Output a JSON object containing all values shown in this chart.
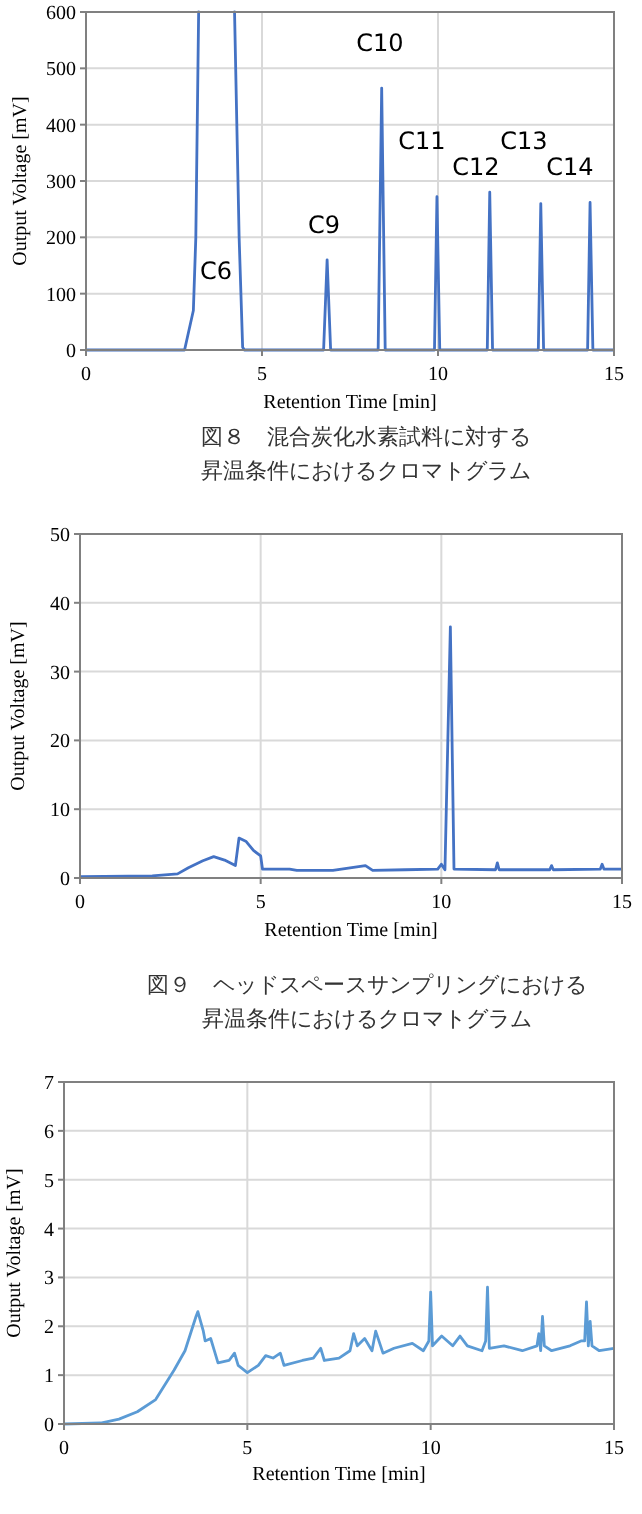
{
  "chart_data": [
    {
      "type": "line",
      "title": "図８　混合炭化水素試料に対する昇温条件におけるクロマトグラム",
      "xlabel": "Retention Time [min]",
      "ylabel": "Output Voltage [mV]",
      "xlim": [
        0,
        15
      ],
      "ylim": [
        0,
        600
      ],
      "xticks": [
        0,
        5,
        10,
        15
      ],
      "yticks": [
        0,
        100,
        200,
        300,
        400,
        500,
        600
      ],
      "grid": true,
      "marker": "none",
      "line_style": "solid",
      "series": [
        {
          "color": "#4472c4",
          "x": [
            0,
            2.8,
            3.05,
            3.12,
            3.2,
            3.7,
            4.22,
            4.35,
            4.45,
            4.5,
            6.75,
            6.85,
            6.95,
            8.3,
            8.4,
            8.5,
            9.9,
            9.97,
            10.05,
            11.4,
            11.47,
            11.55,
            12.85,
            12.92,
            13.0,
            14.25,
            14.32,
            14.4,
            15
          ],
          "values": [
            0,
            0,
            70,
            200,
            600,
            null,
            600,
            200,
            5,
            0,
            0,
            160,
            0,
            0,
            465,
            0,
            0,
            272,
            0,
            0,
            280,
            0,
            0,
            260,
            0,
            0,
            262,
            0,
            0
          ]
        }
      ],
      "annotations": [
        "C6",
        "C9",
        "C10",
        "C11",
        "C12",
        "C13",
        "C14"
      ]
    },
    {
      "type": "line",
      "title": "図９　ヘッドスペースサンプリングにおける昇温条件におけるクロマトグラム",
      "xlabel": "Retention Time [min]",
      "ylabel": "Output Voltage [mV]",
      "xlim": [
        0,
        15
      ],
      "ylim": [
        0,
        50
      ],
      "xticks": [
        0,
        5,
        10,
        15
      ],
      "yticks": [
        0,
        10,
        20,
        30,
        40,
        50
      ],
      "grid": true,
      "marker": "none",
      "line_style": "solid",
      "series": [
        {
          "color": "#4472c4",
          "x": [
            0,
            2,
            2.7,
            3.0,
            3.4,
            3.7,
            4.0,
            4.3,
            4.4,
            4.6,
            4.8,
            5.0,
            5.05,
            5.8,
            6,
            7,
            7.9,
            8.1,
            9,
            9.9,
            10.0,
            10.1,
            10.25,
            10.35,
            11.5,
            11.55,
            11.6,
            13.0,
            13.05,
            13.1,
            14.4,
            14.45,
            14.5,
            15
          ],
          "values": [
            0.2,
            0.3,
            0.6,
            1.5,
            2.5,
            3.1,
            2.6,
            1.8,
            5.8,
            5.3,
            4.0,
            3.2,
            1.3,
            1.3,
            1.1,
            1.1,
            1.8,
            1.1,
            1.2,
            1.3,
            2.0,
            1.2,
            36.5,
            1.3,
            1.2,
            2.2,
            1.2,
            1.2,
            1.8,
            1.2,
            1.3,
            2.0,
            1.3,
            1.3
          ]
        }
      ]
    },
    {
      "type": "line",
      "xlabel": "Retention Time [min]",
      "ylabel": "Output Voltage [mV]",
      "xlim": [
        0,
        15
      ],
      "ylim": [
        0,
        7
      ],
      "xticks": [
        0,
        5,
        10,
        15
      ],
      "yticks": [
        0,
        1,
        2,
        3,
        4,
        5,
        6,
        7
      ],
      "grid": true,
      "marker": "none",
      "line_style": "solid",
      "series": [
        {
          "color": "#5b9bd5",
          "x": [
            0,
            1,
            1.5,
            2,
            2.5,
            3,
            3.3,
            3.6,
            3.65,
            3.8,
            3.85,
            4.0,
            4.1,
            4.2,
            4.5,
            4.65,
            4.75,
            5,
            5.3,
            5.5,
            5.7,
            5.9,
            6.0,
            6.5,
            6.8,
            7,
            7.1,
            7.5,
            7.8,
            7.9,
            8.0,
            8.2,
            8.4,
            8.5,
            8.7,
            9.0,
            9.5,
            9.8,
            9.95,
            10.0,
            10.05,
            10.3,
            10.6,
            10.8,
            11.0,
            11.4,
            11.5,
            11.55,
            11.6,
            12,
            12.5,
            12.9,
            12.95,
            13.0,
            13.05,
            13.1,
            13.3,
            13.8,
            14.1,
            14.2,
            14.25,
            14.3,
            14.35,
            14.4,
            14.6,
            15
          ],
          "values": [
            0,
            0.02,
            0.1,
            0.25,
            0.5,
            1.1,
            1.5,
            2.2,
            2.3,
            1.9,
            1.7,
            1.75,
            1.5,
            1.25,
            1.3,
            1.45,
            1.2,
            1.05,
            1.2,
            1.4,
            1.35,
            1.45,
            1.2,
            1.3,
            1.35,
            1.55,
            1.3,
            1.35,
            1.5,
            1.85,
            1.6,
            1.75,
            1.5,
            1.9,
            1.45,
            1.55,
            1.65,
            1.5,
            1.7,
            2.7,
            1.6,
            1.8,
            1.6,
            1.8,
            1.6,
            1.5,
            1.7,
            2.8,
            1.55,
            1.6,
            1.5,
            1.6,
            1.85,
            1.5,
            2.2,
            1.6,
            1.5,
            1.6,
            1.7,
            1.7,
            2.5,
            1.6,
            2.1,
            1.6,
            1.5,
            1.55
          ]
        }
      ]
    }
  ]
}
